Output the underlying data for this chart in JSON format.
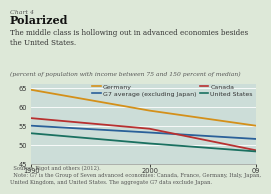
{
  "chart_number": "Chart 4",
  "title": "Polarized",
  "subtitle": "The middle class is hollowing out in advanced economies besides\nthe United States.",
  "ylabel": "(percent of population with income between 75 and 150 percent of median)",
  "background_color": "#dde8d8",
  "plot_bg_color": "#ccddd8",
  "years": [
    1990,
    2000,
    2009
  ],
  "series": {
    "Germany": {
      "values": [
        64.5,
        59.0,
        55.0
      ],
      "color": "#d4901a",
      "linewidth": 1.3
    },
    "G7 average (excluding Japan)": {
      "values": [
        55.0,
        53.2,
        51.5
      ],
      "color": "#2a6099",
      "linewidth": 1.3
    },
    "Canada": {
      "values": [
        57.0,
        54.2,
        48.5
      ],
      "color": "#b83030",
      "linewidth": 1.3
    },
    "United States": {
      "values": [
        53.0,
        50.3,
        48.2
      ],
      "color": "#1a7060",
      "linewidth": 1.3
    }
  },
  "xlim": [
    1990,
    2009
  ],
  "ylim": [
    45,
    66
  ],
  "yticks": [
    45,
    50,
    55,
    60,
    65
  ],
  "xticks": [
    1990,
    2000,
    2009
  ],
  "xticklabels": [
    "1990",
    "2000",
    "09"
  ],
  "source_text": "  Source: Bigot and others (2012).\n  Note: G7 is the Group of Seven advanced economies: Canada, France, Germany, Italy, Japan,\nUnited Kingdom, and United States. The aggregate G7 data exclude Japan.",
  "chart_number_fontsize": 4.5,
  "title_fontsize": 8,
  "subtitle_fontsize": 5.2,
  "axis_fontsize": 4.8,
  "legend_fontsize": 4.5,
  "source_fontsize": 3.8,
  "ylabel_fontsize": 4.3
}
